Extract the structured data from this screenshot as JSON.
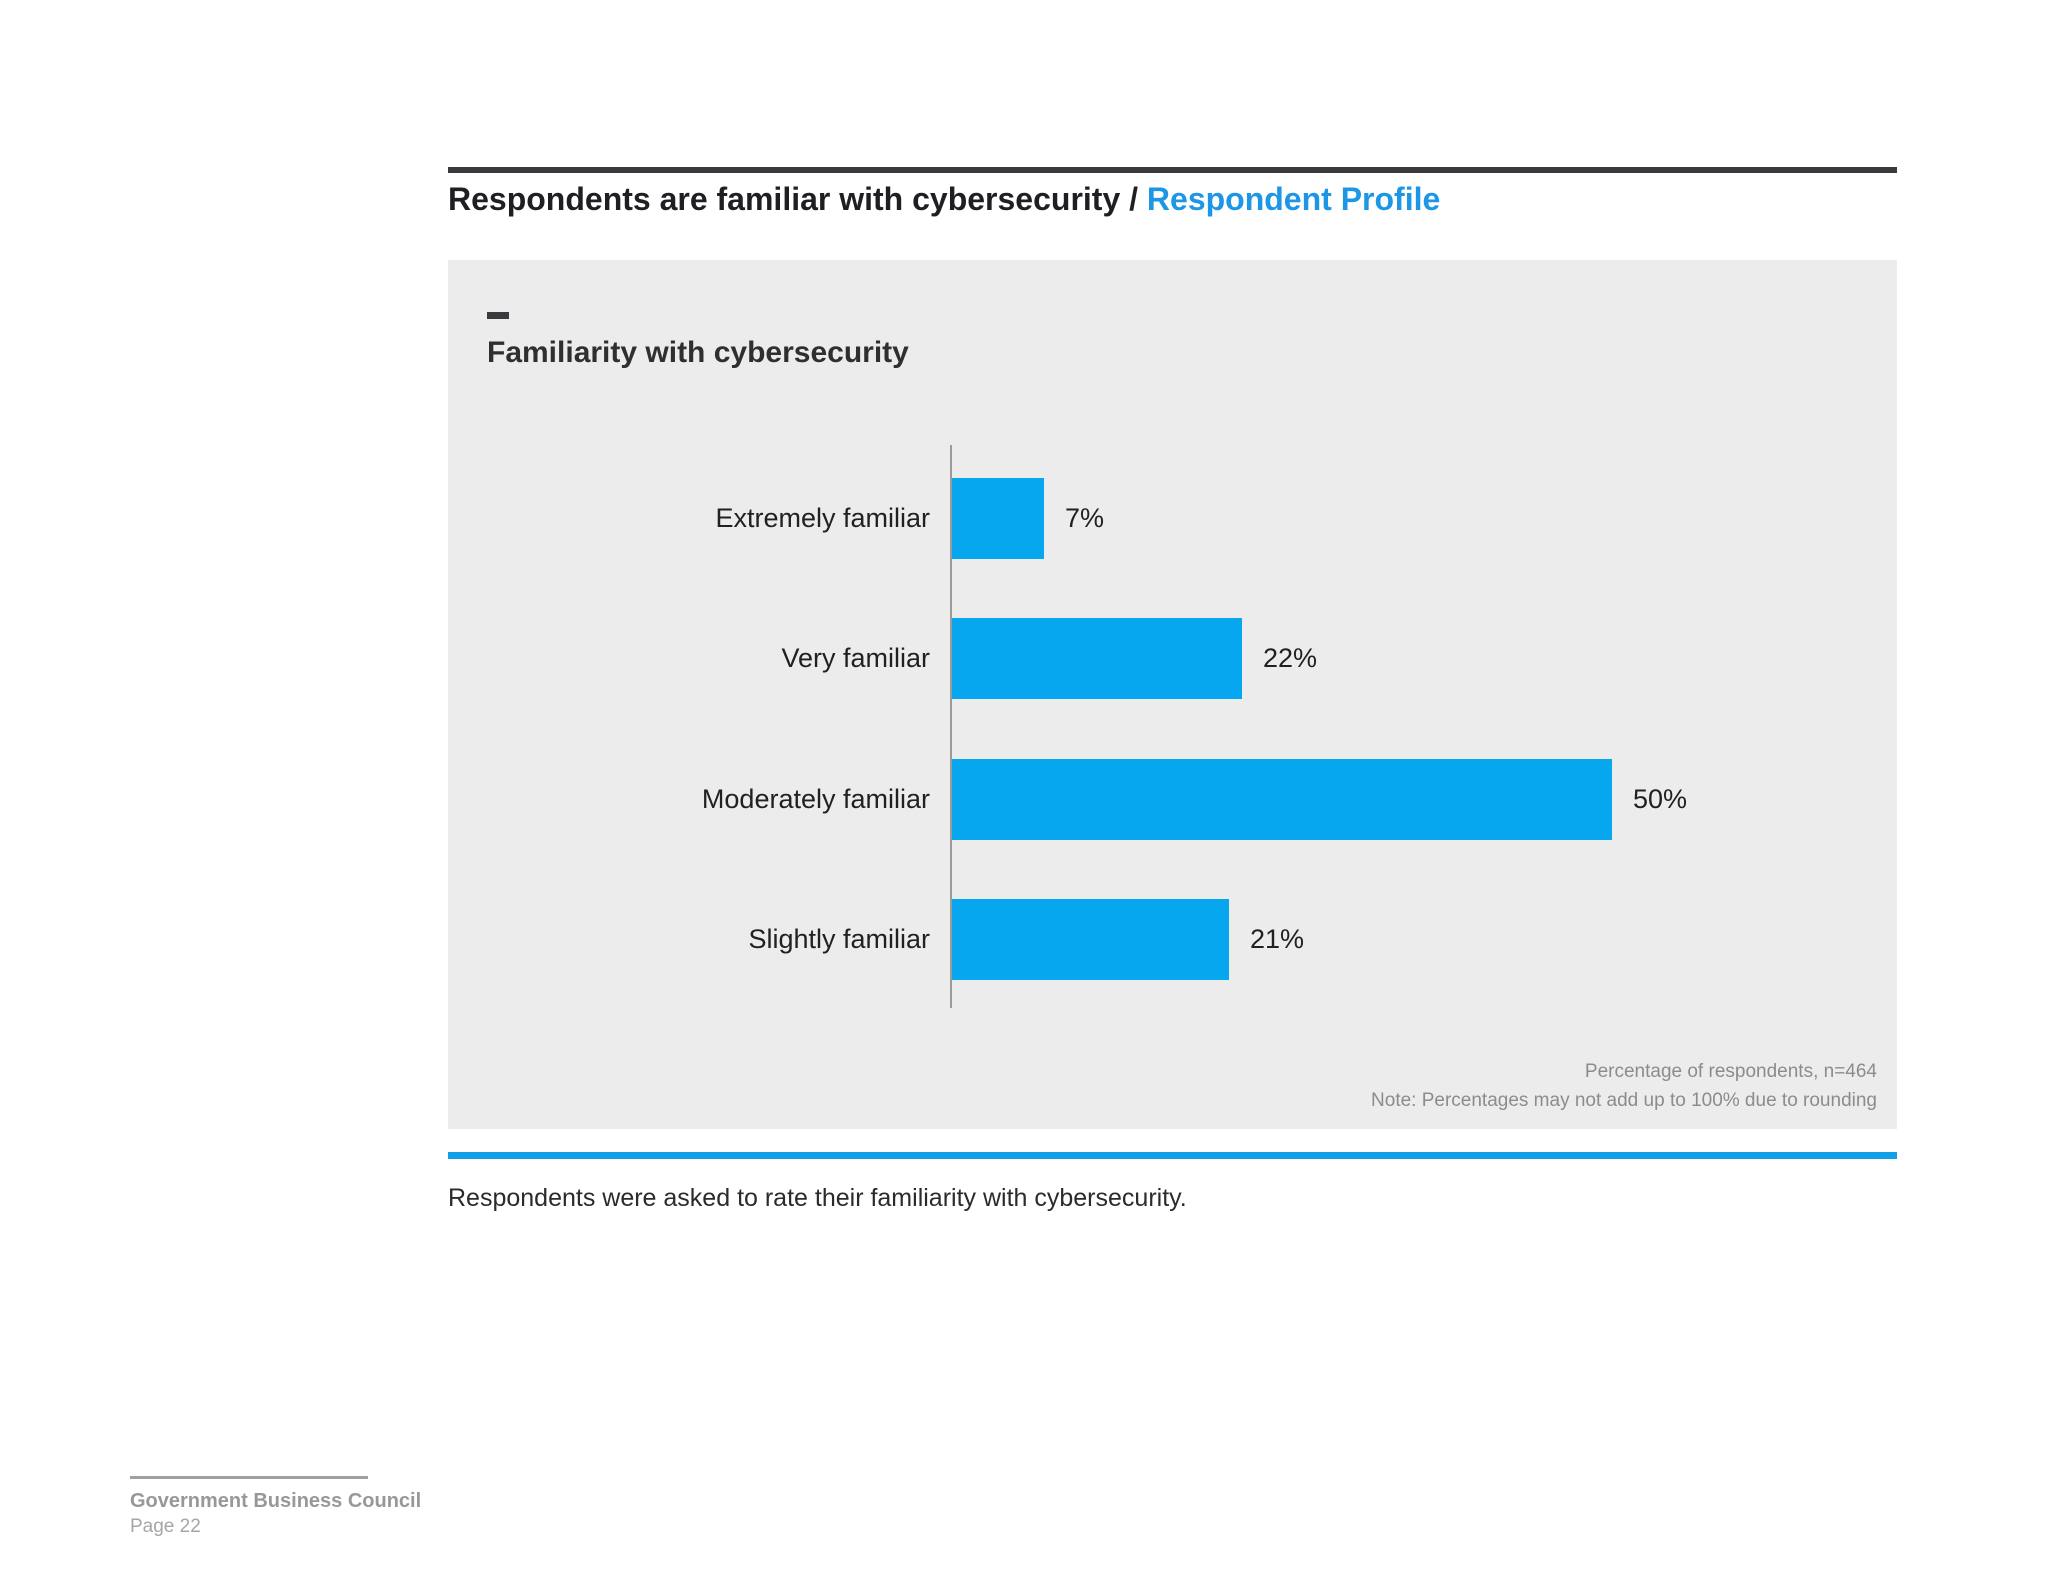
{
  "page": {
    "title_black": "Respondents are familiar with cybersecurity / ",
    "title_blue": "Respondent Profile",
    "caption": "Respondents were asked to rate their familiarity with cybersecurity.",
    "footer": {
      "org": "Government Business Council",
      "page": "Page 22"
    }
  },
  "chart_data": {
    "type": "bar",
    "orientation": "horizontal",
    "title": "Familiarity with cybersecurity",
    "categories": [
      "Extremely familiar",
      "Very familiar",
      "Moderately familiar",
      "Slightly familiar"
    ],
    "values": [
      7,
      22,
      50,
      21
    ],
    "value_labels": [
      "7%",
      "22%",
      "50%",
      "21%"
    ],
    "xlim": [
      0,
      55
    ],
    "grid": false,
    "legend": false,
    "notes": [
      "Percentage of respondents, n=464",
      "Note: Percentages may not add up to 100% due to rounding"
    ],
    "bar_color": "#07a7ef"
  },
  "colors": {
    "accent_blue_text": "#1d97e5",
    "accent_blue_rule": "#119fe6",
    "bar_blue": "#07a7ef",
    "panel_background": "#ececed",
    "dark_rule": "#3a3a3e",
    "axis_gray": "#9b9b9b",
    "note_gray": "#8c8c8c",
    "footer_gray": "#989898"
  }
}
